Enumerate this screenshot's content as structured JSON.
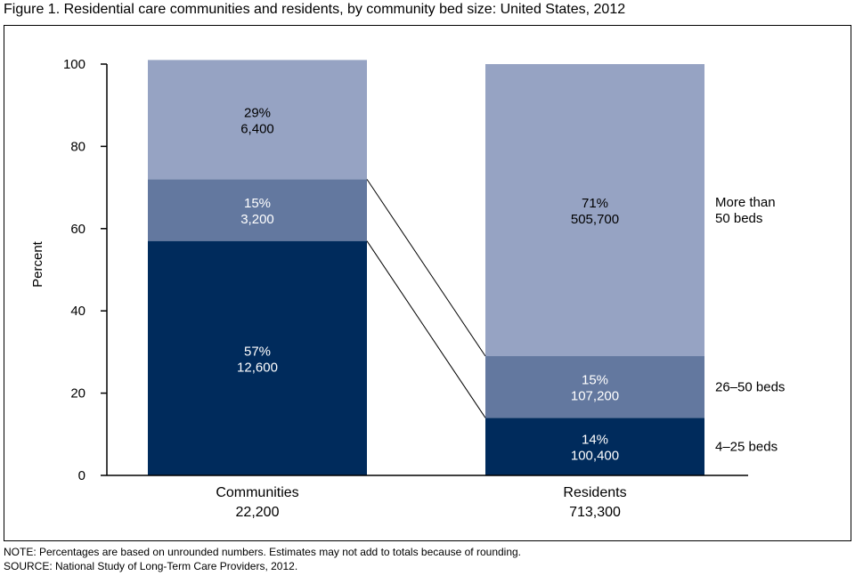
{
  "figure": {
    "title": "Figure 1. Residential care communities and residents, by community bed size: United States, 2012",
    "note": "NOTE: Percentages are based on unrounded numbers. Estimates may not add to totals because of rounding.",
    "source": "SOURCE: National Study of Long-Term Care Providers, 2012."
  },
  "chart_data": {
    "type": "bar",
    "stacked": true,
    "categories": [
      "Communities",
      "Residents"
    ],
    "category_totals": [
      "22,200",
      "713,300"
    ],
    "ylabel": "Percent",
    "xlabel": "",
    "ylim": [
      0,
      100
    ],
    "yticks": [
      0,
      20,
      40,
      60,
      80,
      100
    ],
    "grid": false,
    "connector_lines": true,
    "series": [
      {
        "name": "4–25 beds",
        "values": [
          57,
          14
        ],
        "counts": [
          "12,600",
          "100,400"
        ],
        "color": "#002b5c",
        "label_color": "#ffffff"
      },
      {
        "name": "26–50 beds",
        "values": [
          15,
          15
        ],
        "counts": [
          "3,200",
          "107,200"
        ],
        "color": "#63789f",
        "label_color": "#ffffff"
      },
      {
        "name": "More than 50 beds",
        "name_lines": [
          "More than",
          "50 beds"
        ],
        "values": [
          29,
          71
        ],
        "counts": [
          "6,400",
          "505,700"
        ],
        "color": "#96a3c3",
        "label_color": "#000000"
      }
    ]
  }
}
